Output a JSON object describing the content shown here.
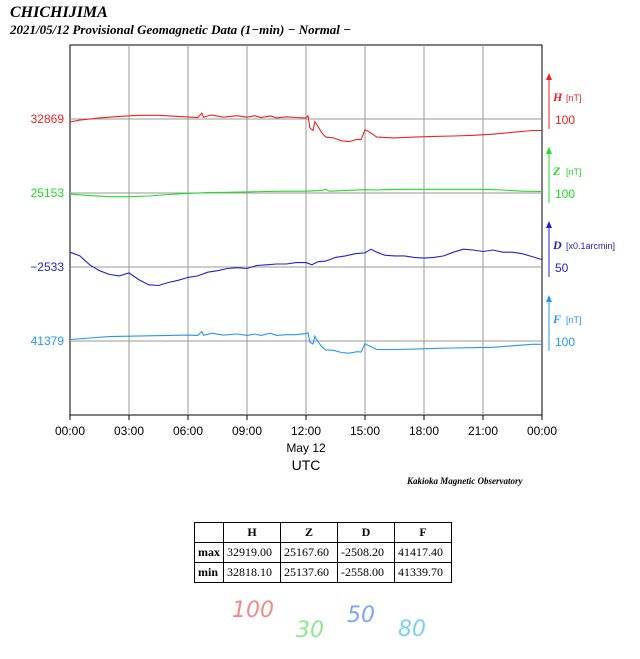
{
  "header": {
    "station": "CHICHIJIMA",
    "subtitle": "2021/05/12  Provisional Geomagnetic Data (1−min)  − Normal −"
  },
  "chart_data": {
    "type": "line",
    "title": "CHICHIJIMA",
    "xlabel": "UTC",
    "date_label": "May 12",
    "x_ticks": [
      "00:00",
      "03:00",
      "06:00",
      "09:00",
      "12:00",
      "15:00",
      "18:00",
      "21:00",
      "00:00"
    ],
    "x_range_hours": [
      0,
      24
    ],
    "grid": true,
    "series": [
      {
        "name": "H",
        "unit": "[nT]",
        "scale_value": "100",
        "baseline_label": "32869",
        "color": "#ee2222",
        "points": [
          [
            0,
            32861
          ],
          [
            0.5,
            32866
          ],
          [
            1.5,
            32872
          ],
          [
            2.5,
            32876
          ],
          [
            3.5,
            32879
          ],
          [
            4.5,
            32879
          ],
          [
            5.5,
            32876
          ],
          [
            6.5,
            32873
          ],
          [
            6.7,
            32885
          ],
          [
            6.8,
            32874
          ],
          [
            7.2,
            32880
          ],
          [
            7.8,
            32874
          ],
          [
            8.5,
            32878
          ],
          [
            9.0,
            32874
          ],
          [
            9.4,
            32878
          ],
          [
            9.7,
            32873
          ],
          [
            10.2,
            32877
          ],
          [
            10.5,
            32872
          ],
          [
            11.0,
            32875
          ],
          [
            11.5,
            32873
          ],
          [
            12.0,
            32872
          ],
          [
            12.1,
            32878
          ],
          [
            12.2,
            32845
          ],
          [
            12.35,
            32838
          ],
          [
            12.45,
            32862
          ],
          [
            12.6,
            32850
          ],
          [
            12.8,
            32832
          ],
          [
            13.0,
            32820
          ],
          [
            13.4,
            32818
          ],
          [
            13.8,
            32810
          ],
          [
            14.2,
            32808
          ],
          [
            14.6,
            32814
          ],
          [
            14.8,
            32813
          ],
          [
            15.0,
            32840
          ],
          [
            15.2,
            32835
          ],
          [
            15.6,
            32820
          ],
          [
            16.5,
            32818
          ],
          [
            17.5,
            32820
          ],
          [
            18.5,
            32822
          ],
          [
            19.5,
            32823
          ],
          [
            20.5,
            32825
          ],
          [
            21.5,
            32828
          ],
          [
            22.5,
            32833
          ],
          [
            23.5,
            32838
          ],
          [
            24,
            32838
          ]
        ]
      },
      {
        "name": "Z",
        "unit": "[nT]",
        "scale_value": "100",
        "baseline_label": "25153",
        "color": "#22dd22",
        "points": [
          [
            0,
            25150
          ],
          [
            1,
            25146
          ],
          [
            2,
            25143
          ],
          [
            3,
            25143
          ],
          [
            4,
            25145
          ],
          [
            5,
            25149
          ],
          [
            6,
            25152
          ],
          [
            7,
            25154
          ],
          [
            8,
            25155
          ],
          [
            9,
            25156
          ],
          [
            10,
            25157
          ],
          [
            11,
            25158
          ],
          [
            12,
            25158
          ],
          [
            12.8,
            25160
          ],
          [
            13,
            25163
          ],
          [
            13.2,
            25158
          ],
          [
            14,
            25160
          ],
          [
            15,
            25162
          ],
          [
            15.5,
            25161
          ],
          [
            16,
            25162
          ],
          [
            17,
            25163
          ],
          [
            18,
            25163
          ],
          [
            19,
            25163
          ],
          [
            20,
            25163
          ],
          [
            21,
            25163
          ],
          [
            22,
            25161
          ],
          [
            23,
            25158
          ],
          [
            24,
            25157
          ]
        ]
      },
      {
        "name": "D",
        "unit": "[x0.1arcmin]",
        "scale_value": "50",
        "baseline_label": "−2533",
        "color": "#2222cc",
        "points": [
          [
            0,
            -2513
          ],
          [
            0.5,
            -2518
          ],
          [
            1,
            -2530
          ],
          [
            1.5,
            -2538
          ],
          [
            2,
            -2543
          ],
          [
            2.5,
            -2545
          ],
          [
            3,
            -2541
          ],
          [
            3.5,
            -2550
          ],
          [
            4,
            -2557
          ],
          [
            4.5,
            -2558
          ],
          [
            5,
            -2554
          ],
          [
            5.5,
            -2551
          ],
          [
            6,
            -2547
          ],
          [
            6.5,
            -2545
          ],
          [
            7,
            -2540
          ],
          [
            7.5,
            -2538
          ],
          [
            8,
            -2535
          ],
          [
            8.5,
            -2534
          ],
          [
            9,
            -2535
          ],
          [
            9.5,
            -2531
          ],
          [
            10,
            -2530
          ],
          [
            10.5,
            -2529
          ],
          [
            11,
            -2529
          ],
          [
            11.5,
            -2527
          ],
          [
            12,
            -2527
          ],
          [
            12.3,
            -2530
          ],
          [
            12.6,
            -2526
          ],
          [
            13,
            -2525
          ],
          [
            13.5,
            -2520
          ],
          [
            14,
            -2518
          ],
          [
            14.5,
            -2515
          ],
          [
            15,
            -2514
          ],
          [
            15.3,
            -2509
          ],
          [
            15.6,
            -2513
          ],
          [
            16,
            -2517
          ],
          [
            16.5,
            -2518
          ],
          [
            17,
            -2518
          ],
          [
            17.5,
            -2520
          ],
          [
            18,
            -2521
          ],
          [
            18.5,
            -2520
          ],
          [
            19,
            -2518
          ],
          [
            19.5,
            -2513
          ],
          [
            20,
            -2509
          ],
          [
            20.5,
            -2510
          ],
          [
            21,
            -2512
          ],
          [
            21.5,
            -2510
          ],
          [
            22,
            -2513
          ],
          [
            22.5,
            -2513
          ],
          [
            23,
            -2515
          ],
          [
            23.5,
            -2519
          ],
          [
            24,
            -2523
          ]
        ]
      },
      {
        "name": "F",
        "unit": "[nT]",
        "scale_value": "100",
        "baseline_label": "41379",
        "color": "#2299ee",
        "points": [
          [
            0,
            41383
          ],
          [
            1,
            41387
          ],
          [
            2,
            41391
          ],
          [
            3,
            41392
          ],
          [
            4,
            41393
          ],
          [
            5,
            41394
          ],
          [
            6,
            41395
          ],
          [
            6.5,
            41394
          ],
          [
            6.7,
            41405
          ],
          [
            6.8,
            41394
          ],
          [
            7.2,
            41400
          ],
          [
            7.8,
            41395
          ],
          [
            8.5,
            41398
          ],
          [
            9,
            41394
          ],
          [
            9.4,
            41398
          ],
          [
            9.7,
            41394
          ],
          [
            10.2,
            41400
          ],
          [
            10.5,
            41394
          ],
          [
            11,
            41396
          ],
          [
            11.5,
            41396
          ],
          [
            12,
            41399
          ],
          [
            12.1,
            41401
          ],
          [
            12.2,
            41376
          ],
          [
            12.35,
            41371
          ],
          [
            12.45,
            41392
          ],
          [
            12.6,
            41378
          ],
          [
            12.8,
            41364
          ],
          [
            13,
            41355
          ],
          [
            13.4,
            41354
          ],
          [
            13.8,
            41348
          ],
          [
            14.2,
            41346
          ],
          [
            14.6,
            41350
          ],
          [
            14.8,
            41349
          ],
          [
            15,
            41372
          ],
          [
            15.2,
            41366
          ],
          [
            15.6,
            41356
          ],
          [
            16.5,
            41356
          ],
          [
            17.5,
            41357
          ],
          [
            18.5,
            41359
          ],
          [
            19.5,
            41360
          ],
          [
            20.5,
            41361
          ],
          [
            21.5,
            41362
          ],
          [
            22.5,
            41366
          ],
          [
            23.5,
            41370
          ],
          [
            24,
            41370
          ]
        ]
      }
    ]
  },
  "footer": {
    "observatory": "Kakioka Magnetic Observatory"
  },
  "stats_table": {
    "headers": [
      "",
      "H",
      "Z",
      "D",
      "F"
    ],
    "rows": [
      [
        "max",
        "32919.00",
        "25167.60",
        "-2508.20",
        "41417.40"
      ],
      [
        "min",
        "32818.10",
        "25137.60",
        "-2558.00",
        "41339.70"
      ]
    ]
  },
  "handwritten": [
    {
      "text": "100",
      "color": "#f28a8a"
    },
    {
      "text": "30",
      "color": "#8fe88f"
    },
    {
      "text": "50",
      "color": "#7aa6ea"
    },
    {
      "text": "80",
      "color": "#7ed0ee"
    }
  ]
}
